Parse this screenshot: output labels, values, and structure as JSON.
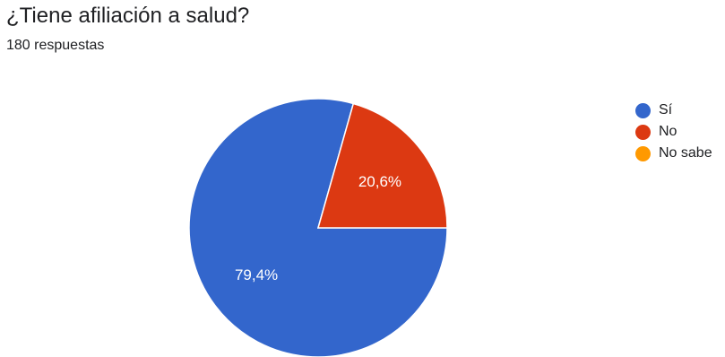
{
  "header": {
    "title": "¿Tiene afiliación a salud?",
    "subtitle": "180 respuestas"
  },
  "chart_data": {
    "type": "pie",
    "title": "¿Tiene afiliación a salud?",
    "subtitle": "180 respuestas",
    "categories": [
      "Sí",
      "No",
      "No sabe"
    ],
    "values": [
      79.4,
      20.6,
      0
    ],
    "data_labels": [
      "79,4%",
      "20,6%",
      ""
    ],
    "colors": [
      "#3366cc",
      "#dc3912",
      "#ff9900"
    ],
    "legend_position": "right"
  }
}
